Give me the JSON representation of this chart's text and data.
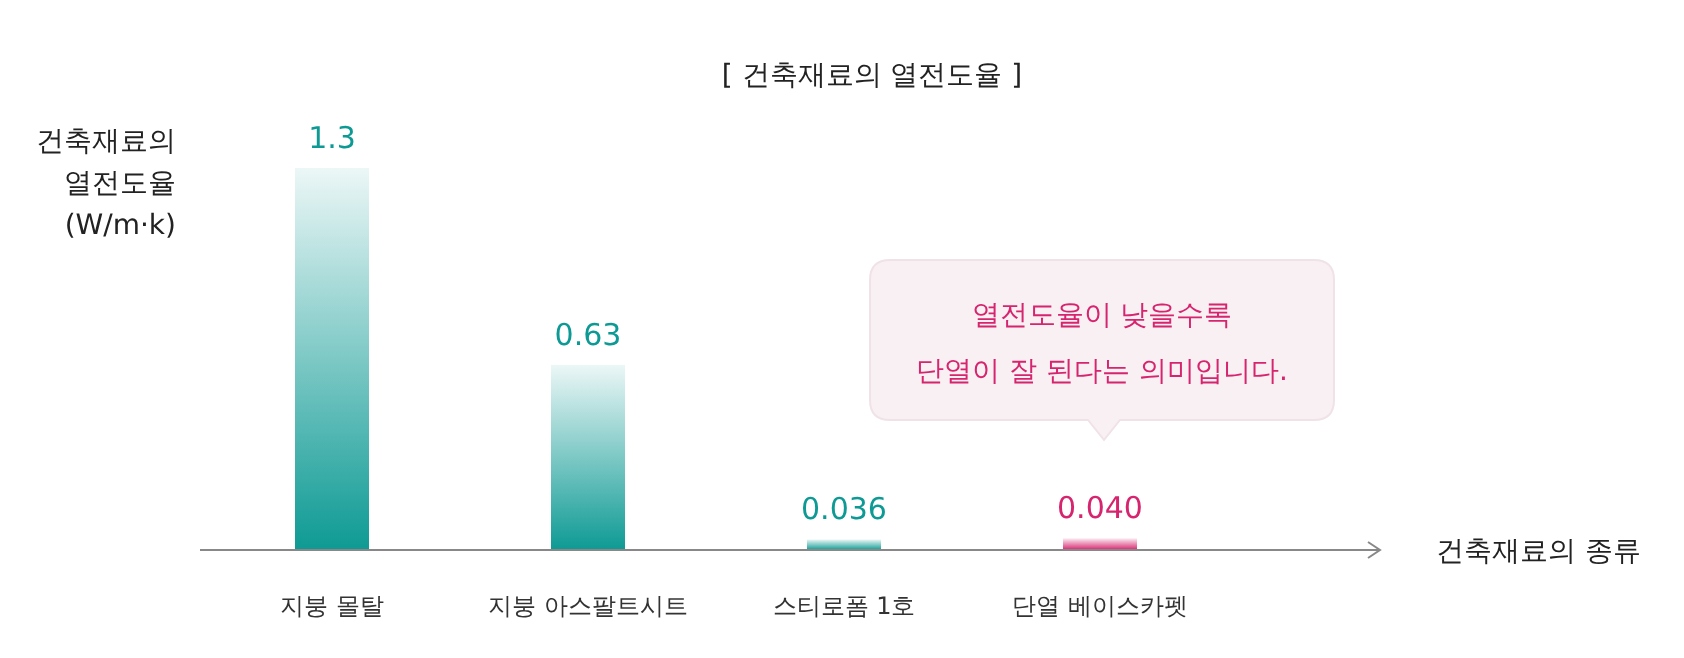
{
  "chart_data": {
    "type": "bar",
    "title": "[ 건축재료의 열전도율 ]",
    "ylabel": "건축재료의 열전도율 (W/m·k)",
    "xlabel": "건축재료의 종류",
    "categories": [
      "지붕 몰탈",
      "지붕 아스팔트시트",
      "스티로폼 1호",
      "단열 베이스카펫"
    ],
    "values": [
      1.3,
      0.63,
      0.036,
      0.04
    ],
    "colors": [
      "#0e9a94",
      "#0e9a94",
      "#0e9a94",
      "#d6246e"
    ],
    "value_labels": [
      "1.3",
      "0.63",
      "0.036",
      "0.040"
    ],
    "annotations": [
      "열전도율이 낮을수록 단열이 잘 된다는 의미입니다."
    ]
  }
}
